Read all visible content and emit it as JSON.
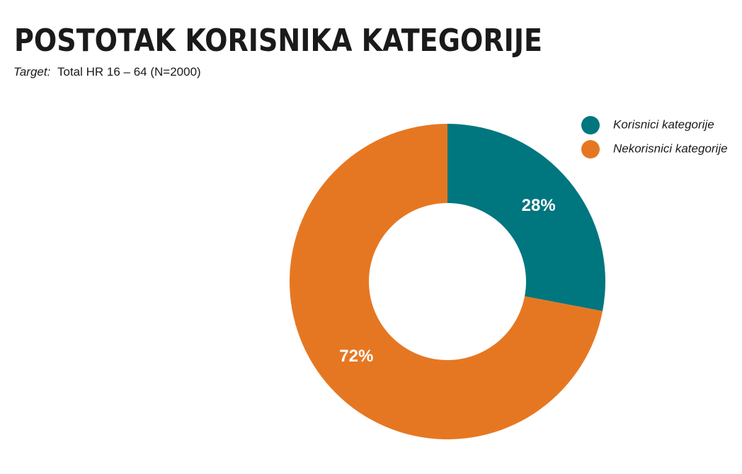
{
  "chart_data": {
    "type": "donut",
    "title": "POSTOTAK KORISNIKA KATEGORIJE",
    "subtitle_label": "Target:",
    "subtitle": "Total HR 16 – 64 (N=2000)",
    "categories": [
      "Korisnici kategorije",
      "Nekorisnici kategorije"
    ],
    "values": [
      28,
      72
    ],
    "value_labels": [
      "28%",
      "72%"
    ],
    "colors": [
      "#00767f",
      "#e67722"
    ],
    "legend": "top-right"
  }
}
